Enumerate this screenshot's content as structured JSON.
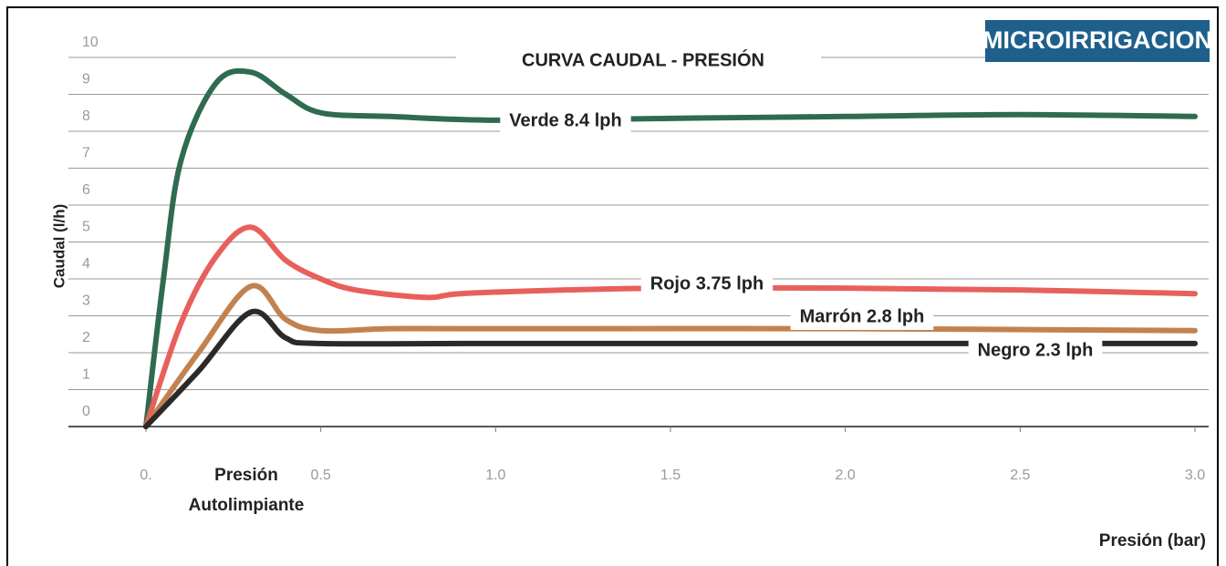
{
  "chart_data": {
    "type": "line",
    "title": "CURVA CAUDAL - PRESIÓN",
    "badge": "MICROIRRIGACION",
    "y_label": "Caudal (l/h)",
    "x_label": "Presión (bar)",
    "annotations": [
      "Presión",
      "Autolimpiante"
    ],
    "xlim": [
      0,
      3
    ],
    "xticks": [
      {
        "value": 0,
        "label": "0."
      },
      0.5,
      {
        "value": 1,
        "label": "1.0"
      },
      1.5,
      {
        "value": 2,
        "label": "2.0"
      },
      2.5,
      {
        "value": 3,
        "label": "3.0"
      }
    ],
    "ylim": [
      0,
      10
    ],
    "yticks": [
      0,
      1,
      2,
      3,
      4,
      5,
      6,
      7,
      8,
      9,
      10
    ],
    "grid": true,
    "series": [
      {
        "name": "Verde 8.4 lph",
        "color": "#2f6b50",
        "x": [
          0,
          0.05,
          0.1,
          0.2,
          0.3,
          0.4,
          0.5,
          0.7,
          1.0,
          1.5,
          2.0,
          2.5,
          3.0
        ],
        "values": [
          0,
          4,
          7.2,
          9.3,
          9.6,
          9.0,
          8.5,
          8.4,
          8.3,
          8.35,
          8.4,
          8.45,
          8.4
        ]
      },
      {
        "name": "Rojo 3.75 lph",
        "color": "#e8605c",
        "x": [
          0,
          0.1,
          0.2,
          0.3,
          0.4,
          0.5,
          0.6,
          0.8,
          0.9,
          1.2,
          1.5,
          2.0,
          2.5,
          3.0
        ],
        "values": [
          0,
          2.8,
          4.6,
          5.4,
          4.5,
          4.0,
          3.7,
          3.5,
          3.6,
          3.7,
          3.75,
          3.75,
          3.7,
          3.6
        ]
      },
      {
        "name": "Marrón 2.8 lph",
        "color": "#c2824f",
        "x": [
          0,
          0.15,
          0.3,
          0.4,
          0.5,
          0.7,
          1.0,
          2.0,
          3.0
        ],
        "values": [
          0,
          2,
          3.8,
          2.9,
          2.6,
          2.65,
          2.65,
          2.65,
          2.6
        ]
      },
      {
        "name": "Negro 2.3 lph",
        "color": "#2a2a2a",
        "x": [
          0,
          0.15,
          0.3,
          0.4,
          0.5,
          1.0,
          2.0,
          2.5,
          3.0
        ],
        "values": [
          0,
          1.5,
          3.1,
          2.4,
          2.25,
          2.25,
          2.25,
          2.25,
          2.25
        ]
      }
    ]
  }
}
